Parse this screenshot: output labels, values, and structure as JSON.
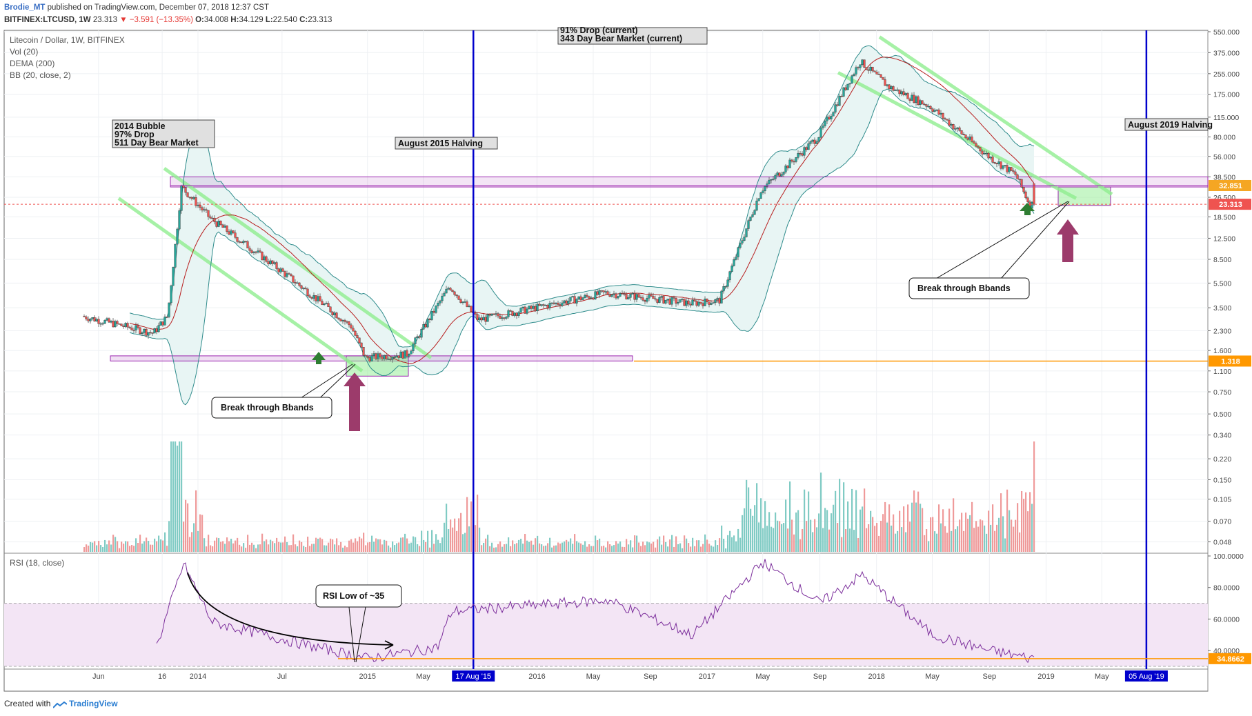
{
  "header": {
    "author": "Brodie_MT",
    "published": "published on TradingView.com, December 07, 2018 12:37 CST",
    "symbol": "BITFINEX:LTCUSD, 1W",
    "last": "23.313",
    "change": "▼ −3.591 (−13.35%)",
    "ohlc": {
      "o_label": "O:",
      "o": "34.008",
      "h_label": "H:",
      "h": "34.129",
      "l_label": "L:",
      "l": "22.540",
      "c_label": "C:",
      "c": "23.313"
    }
  },
  "legend": [
    "Litecoin / Dollar, 1W, BITFINEX",
    "Vol (20)",
    "DEMA (200)",
    "BB (20, close, 2)"
  ],
  "rsi_legend": "RSI (18, close)",
  "annotations": {
    "bubble2014": [
      "2014 Bubble",
      "97% Drop",
      "511 Day Bear Market"
    ],
    "current": [
      "91% Drop (current)",
      "343 Day Bear Market (current)"
    ],
    "halving2015": "August 2015 Halving",
    "halving2019": "August 2019 Halving",
    "bbands1": "Break through Bbands",
    "bbands2": "Break through Bbands",
    "rsi_low": "RSI Low of ~35"
  },
  "footer": {
    "prefix": "Created with",
    "brand": "TradingView"
  },
  "colors": {
    "up": "#26a69a",
    "down": "#ef5350",
    "bb": "#2e8b8b",
    "bb_fill": "#e8f5f4",
    "dema": "#b71c1c",
    "halving": "#0000cc",
    "purple": "#9c27b0",
    "orange": "#ff9800",
    "rsi": "#7b2d9b",
    "rsi_band": "#f3e5f5",
    "arrow": "#9c3b6b",
    "green_up": "#2e7d32",
    "green_line": "#90ee90"
  },
  "chart_data": [
    {
      "type": "candlestick",
      "title": "Litecoin / Dollar, 1W, BITFINEX",
      "y_scale": "log",
      "ylim": [
        0.04,
        550
      ],
      "y_ticks": [
        "550.000",
        "375.000",
        "255.000",
        "175.000",
        "115.000",
        "80.000",
        "56.000",
        "38.500",
        "26.500",
        "18.500",
        "12.500",
        "8.500",
        "5.500",
        "3.500",
        "2.300",
        "1.600",
        "1.100",
        "0.750",
        "0.500",
        "0.340",
        "0.220",
        "0.150",
        "0.105",
        "0.070",
        "0.048"
      ],
      "price_labels": [
        {
          "label": "32.851",
          "value": 32.851,
          "color": "#f5a623"
        },
        {
          "label": "23.313",
          "value": 23.313,
          "color": "#ef5350"
        },
        {
          "label": "1.318",
          "value": 1.318,
          "color": "#ff9800"
        }
      ],
      "x_ticks": [
        "Jun",
        "16",
        "2014",
        "Jul",
        "2015",
        "May",
        "2016",
        "May",
        "Sep",
        "2017",
        "May",
        "Sep",
        "2018",
        "May",
        "Sep",
        "2019",
        "May"
      ],
      "x_range": [
        "2013-05",
        "2019-08"
      ],
      "key_points": [
        {
          "x": "2013-05",
          "price": 3.0
        },
        {
          "x": "2013-10",
          "price": 2.2
        },
        {
          "x": "2013-11",
          "price": 3.0
        },
        {
          "x": "2013-12",
          "price": 32
        },
        {
          "x": "2014-02",
          "price": 18
        },
        {
          "x": "2014-07",
          "price": 7
        },
        {
          "x": "2014-12",
          "price": 2.5
        },
        {
          "x": "2015-01",
          "price": 1.4
        },
        {
          "x": "2015-04",
          "price": 1.5
        },
        {
          "x": "2015-07",
          "price": 5.2
        },
        {
          "x": "2015-09",
          "price": 2.8
        },
        {
          "x": "2016-06",
          "price": 4.6
        },
        {
          "x": "2016-12",
          "price": 3.8
        },
        {
          "x": "2017-02",
          "price": 4.0
        },
        {
          "x": "2017-05",
          "price": 30
        },
        {
          "x": "2017-09",
          "price": 80
        },
        {
          "x": "2017-12",
          "price": 320
        },
        {
          "x": "2018-02",
          "price": 200
        },
        {
          "x": "2018-05",
          "price": 140
        },
        {
          "x": "2018-09",
          "price": 57
        },
        {
          "x": "2018-11",
          "price": 40
        },
        {
          "x": "2018-12",
          "price": 23.313
        }
      ],
      "levels": [
        {
          "name": "resistance zone",
          "from": 32.0,
          "to": 38.5
        },
        {
          "name": "support zone",
          "from": 1.32,
          "to": 1.45
        },
        {
          "name": "last price",
          "value": 23.313
        }
      ],
      "vertical_markers": [
        {
          "label": "17 Aug '15",
          "x": "2015-08-17"
        },
        {
          "label": "05 Aug '19",
          "x": "2019-08-05"
        }
      ],
      "series": [
        {
          "name": "Vol (20)"
        },
        {
          "name": "DEMA (200)"
        },
        {
          "name": "BB (20, close, 2)"
        }
      ]
    },
    {
      "type": "line",
      "title": "RSI (18, close)",
      "ylim": [
        30,
        100
      ],
      "y_ticks": [
        "100.0000",
        "80.0000",
        "60.0000",
        "40.0000"
      ],
      "last_label": "34.8662",
      "band": [
        30,
        70
      ],
      "key_points": [
        {
          "x": "2013-10",
          "rsi": 40
        },
        {
          "x": "2013-12",
          "rsi": 95
        },
        {
          "x": "2014-02",
          "rsi": 58
        },
        {
          "x": "2014-08",
          "rsi": 45
        },
        {
          "x": "2015-01",
          "rsi": 35
        },
        {
          "x": "2015-06",
          "rsi": 42
        },
        {
          "x": "2015-07",
          "rsi": 65
        },
        {
          "x": "2016-06",
          "rsi": 72
        },
        {
          "x": "2016-12",
          "rsi": 50
        },
        {
          "x": "2017-05",
          "rsi": 96
        },
        {
          "x": "2017-09",
          "rsi": 70
        },
        {
          "x": "2017-12",
          "rsi": 88
        },
        {
          "x": "2018-05",
          "rsi": 50
        },
        {
          "x": "2018-09",
          "rsi": 40
        },
        {
          "x": "2018-12",
          "rsi": 35
        }
      ]
    }
  ]
}
